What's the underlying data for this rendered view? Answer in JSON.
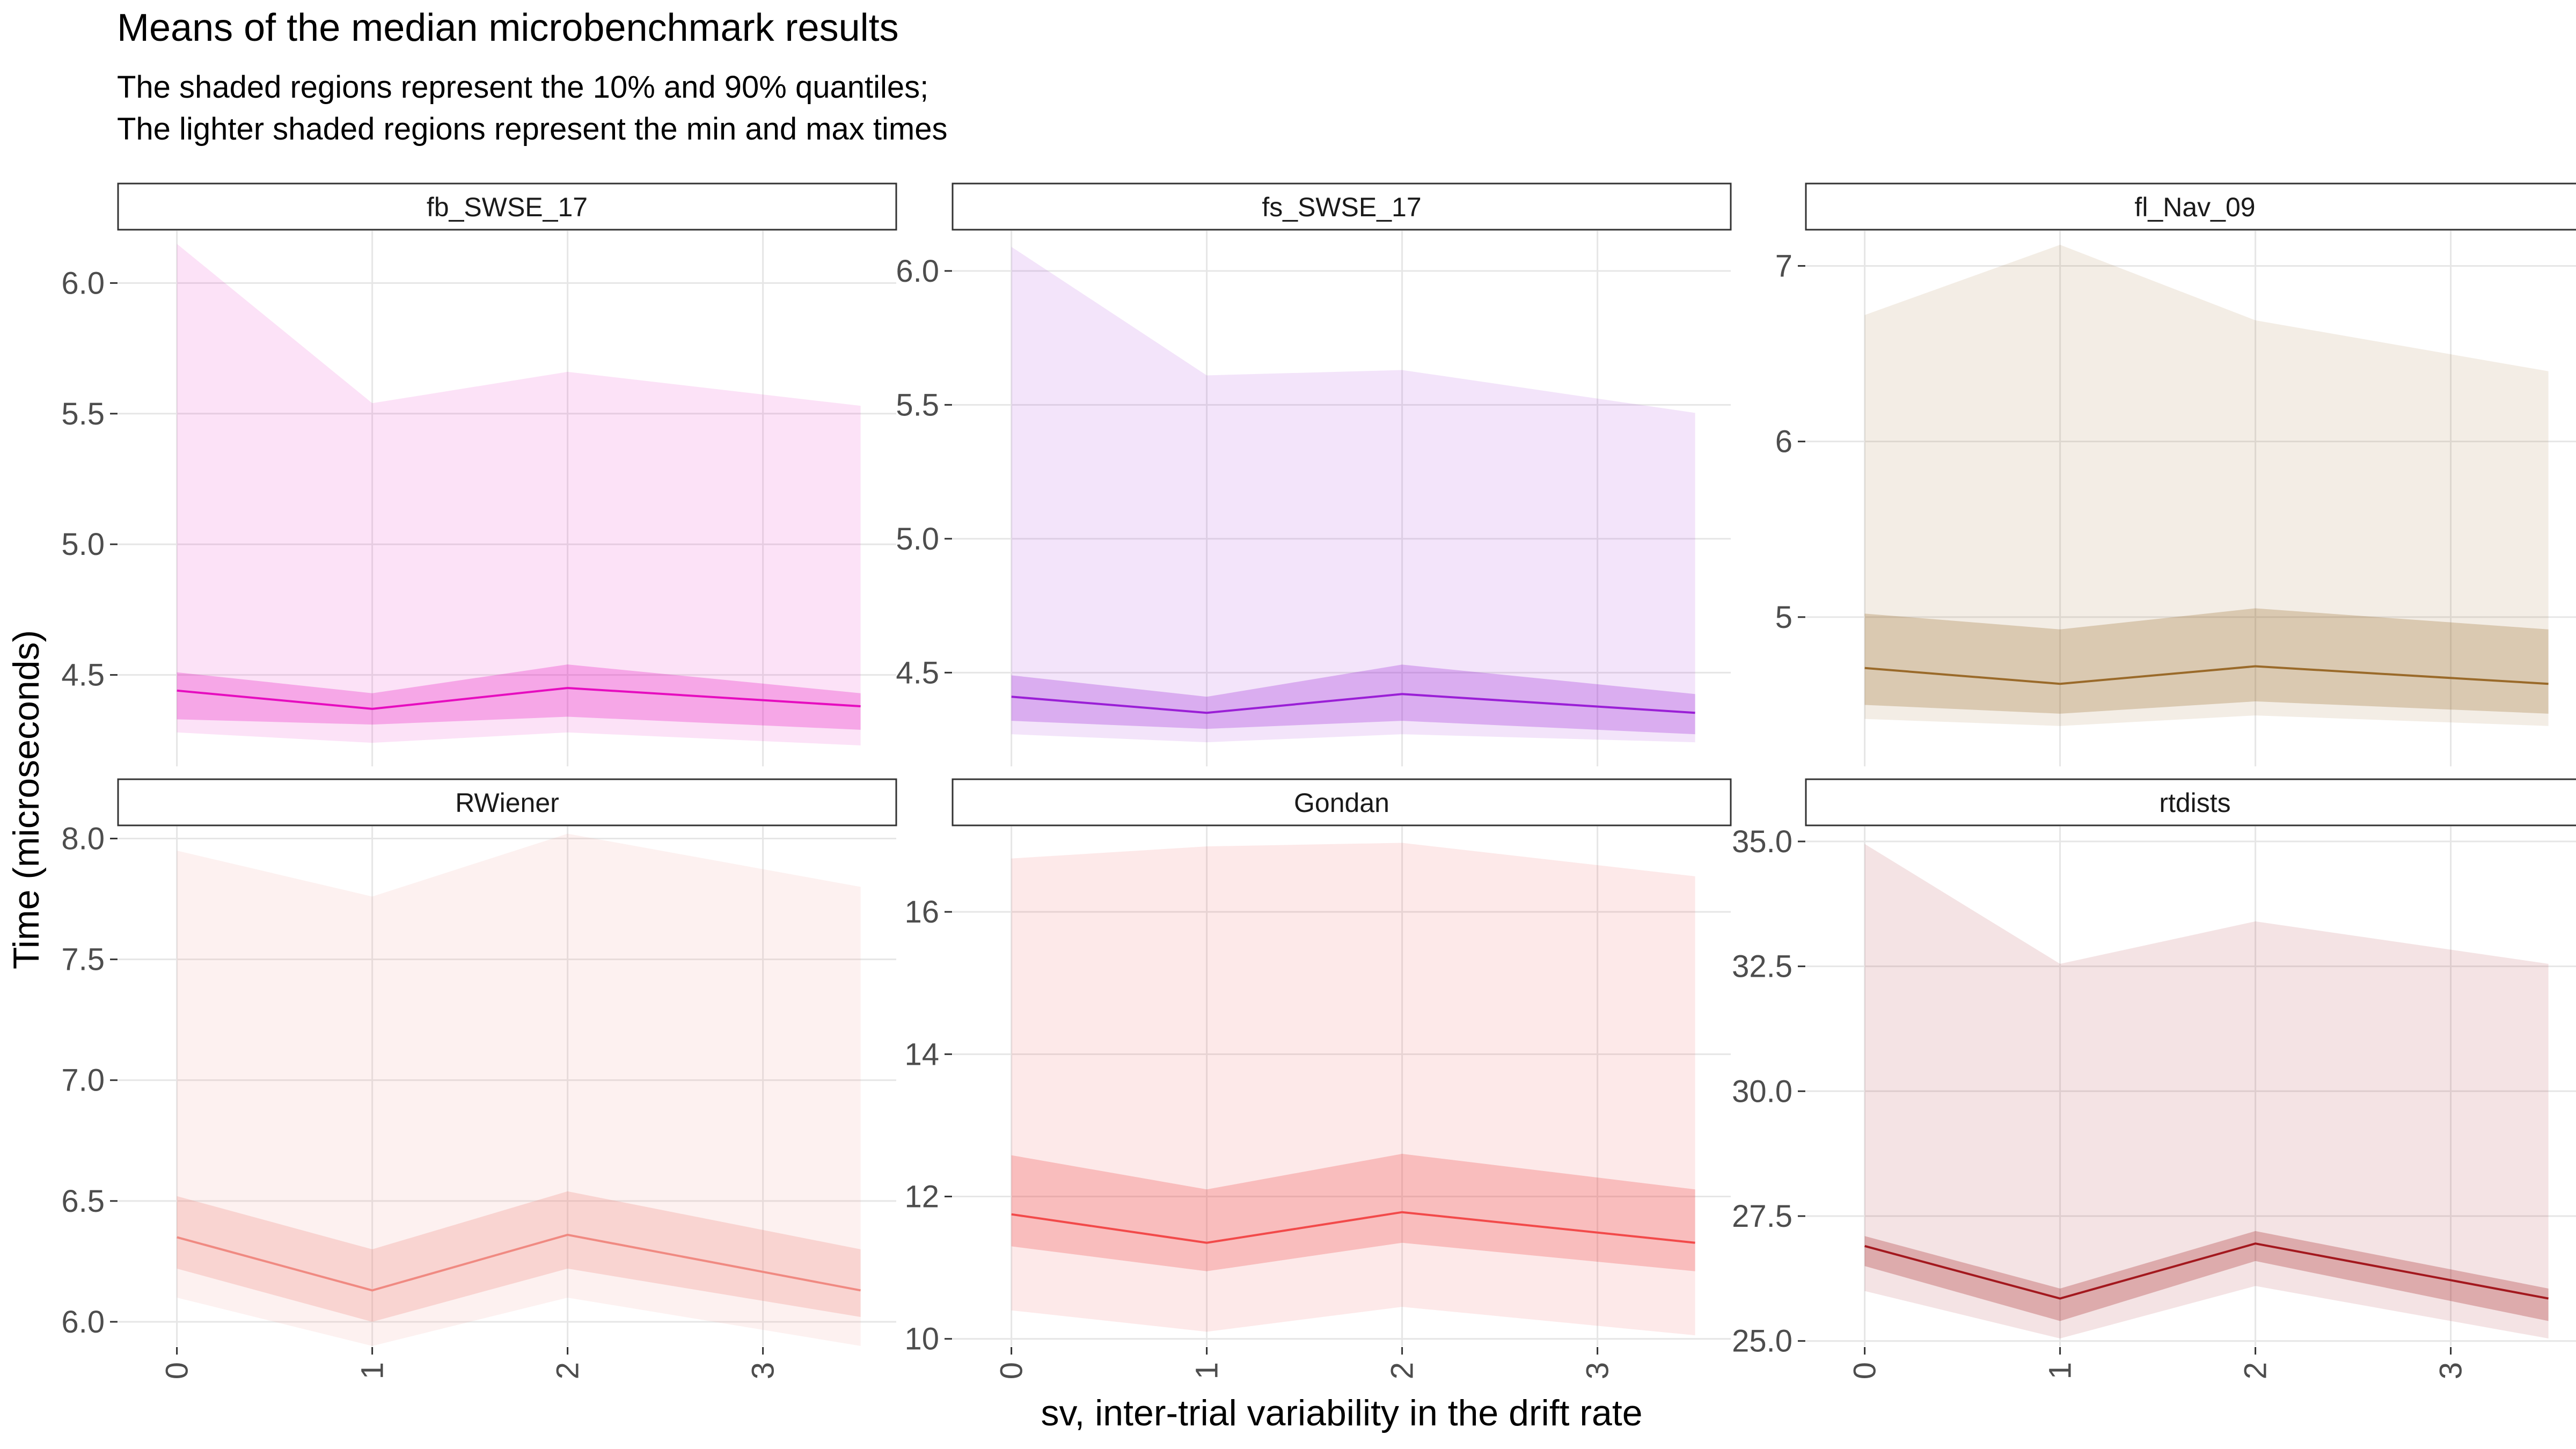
{
  "figure": {
    "title": "Means of the median microbenchmark results",
    "subtitle_lines": [
      "The shaded regions represent the 10% and 90% quantiles;",
      "The lighter shaded regions represent the min and max times"
    ],
    "xlabel": "sv, inter-trial variability in the drift rate",
    "ylabel": "Time (microseconds)"
  },
  "chart_data": [
    {
      "type": "area",
      "panel": "fb_SWSE_17",
      "color": "#e60dbf",
      "x": [
        0,
        1,
        2,
        3.5
      ],
      "x_ticks": [
        "0",
        "1",
        "2",
        "3"
      ],
      "xlim": [
        -0.15,
        3.6
      ],
      "ylim": [
        4.15,
        6.2
      ],
      "y_ticks": [
        "4.5",
        "5.0",
        "5.5",
        "6.0"
      ],
      "series": [
        {
          "stat": "mean",
          "values": [
            4.44,
            4.37,
            4.45,
            4.38
          ]
        },
        {
          "stat": "q10",
          "values": [
            4.33,
            4.31,
            4.34,
            4.29
          ]
        },
        {
          "stat": "q90",
          "values": [
            4.51,
            4.43,
            4.54,
            4.43
          ]
        },
        {
          "stat": "min",
          "values": [
            4.28,
            4.24,
            4.28,
            4.23
          ]
        },
        {
          "stat": "max",
          "values": [
            6.15,
            5.54,
            5.66,
            5.53
          ]
        }
      ]
    },
    {
      "type": "area",
      "panel": "fs_SWSE_17",
      "color": "#9a1fd6",
      "x": [
        0,
        1,
        2,
        3.5
      ],
      "x_ticks": [
        "0",
        "1",
        "2",
        "3"
      ],
      "xlim": [
        -0.15,
        3.6
      ],
      "ylim": [
        4.15,
        6.15
      ],
      "y_ticks": [
        "4.5",
        "5.0",
        "5.5",
        "6.0"
      ],
      "series": [
        {
          "stat": "mean",
          "values": [
            4.41,
            4.35,
            4.42,
            4.35
          ]
        },
        {
          "stat": "q10",
          "values": [
            4.32,
            4.29,
            4.32,
            4.27
          ]
        },
        {
          "stat": "q90",
          "values": [
            4.49,
            4.41,
            4.53,
            4.42
          ]
        },
        {
          "stat": "min",
          "values": [
            4.27,
            4.24,
            4.27,
            4.24
          ]
        },
        {
          "stat": "max",
          "values": [
            6.09,
            5.61,
            5.63,
            5.47
          ]
        }
      ]
    },
    {
      "type": "area",
      "panel": "fl_Nav_09",
      "color": "#9a6a2a",
      "x": [
        0,
        1,
        2,
        3.5
      ],
      "x_ticks": [
        "0",
        "1",
        "2",
        "3"
      ],
      "xlim": [
        -0.15,
        3.6
      ],
      "ylim": [
        4.15,
        7.2
      ],
      "y_ticks": [
        "5",
        "6",
        "7"
      ],
      "series": [
        {
          "stat": "mean",
          "values": [
            4.71,
            4.62,
            4.72,
            4.62
          ]
        },
        {
          "stat": "q10",
          "values": [
            4.5,
            4.45,
            4.52,
            4.45
          ]
        },
        {
          "stat": "q90",
          "values": [
            5.02,
            4.93,
            5.05,
            4.93
          ]
        },
        {
          "stat": "min",
          "values": [
            4.42,
            4.38,
            4.44,
            4.38
          ]
        },
        {
          "stat": "max",
          "values": [
            6.72,
            7.12,
            6.69,
            6.4
          ]
        }
      ]
    },
    {
      "type": "area",
      "panel": "RWiener",
      "color": "#f08a82",
      "x": [
        0,
        1,
        2,
        3.5
      ],
      "x_ticks": [
        "0",
        "1",
        "2",
        "3"
      ],
      "xlim": [
        -0.15,
        3.6
      ],
      "ylim": [
        5.9,
        8.05
      ],
      "y_ticks": [
        "6.0",
        "6.5",
        "7.0",
        "7.5",
        "8.0"
      ],
      "series": [
        {
          "stat": "mean",
          "values": [
            6.35,
            6.13,
            6.36,
            6.13
          ]
        },
        {
          "stat": "q10",
          "values": [
            6.22,
            6.0,
            6.22,
            6.02
          ]
        },
        {
          "stat": "q90",
          "values": [
            6.52,
            6.3,
            6.54,
            6.3
          ]
        },
        {
          "stat": "min",
          "values": [
            6.1,
            5.9,
            6.1,
            5.9
          ]
        },
        {
          "stat": "max",
          "values": [
            7.95,
            7.76,
            8.02,
            7.8
          ]
        }
      ]
    },
    {
      "type": "area",
      "panel": "Gondan",
      "color": "#f24a4a",
      "x": [
        0,
        1,
        2,
        3.5
      ],
      "x_ticks": [
        "0",
        "1",
        "2",
        "3"
      ],
      "xlim": [
        -0.15,
        3.6
      ],
      "ylim": [
        9.9,
        17.2
      ],
      "y_ticks": [
        "10",
        "12",
        "14",
        "16"
      ],
      "series": [
        {
          "stat": "mean",
          "values": [
            11.75,
            11.35,
            11.78,
            11.35
          ]
        },
        {
          "stat": "q10",
          "values": [
            11.3,
            10.95,
            11.35,
            10.95
          ]
        },
        {
          "stat": "q90",
          "values": [
            12.58,
            12.1,
            12.6,
            12.1
          ]
        },
        {
          "stat": "min",
          "values": [
            10.4,
            10.1,
            10.45,
            10.05
          ]
        },
        {
          "stat": "max",
          "values": [
            16.75,
            16.92,
            16.97,
            16.5
          ]
        }
      ]
    },
    {
      "type": "area",
      "panel": "rtdists",
      "color": "#a3181e",
      "x": [
        0,
        1,
        2,
        3.5
      ],
      "x_ticks": [
        "0",
        "1",
        "2",
        "3"
      ],
      "xlim": [
        -0.15,
        3.6
      ],
      "ylim": [
        24.9,
        35.3
      ],
      "y_ticks": [
        "25.0",
        "27.5",
        "30.0",
        "32.5",
        "35.0"
      ],
      "series": [
        {
          "stat": "mean",
          "values": [
            26.9,
            25.85,
            26.95,
            25.85
          ]
        },
        {
          "stat": "q10",
          "values": [
            26.5,
            25.4,
            26.6,
            25.4
          ]
        },
        {
          "stat": "q90",
          "values": [
            27.1,
            26.05,
            27.2,
            26.05
          ]
        },
        {
          "stat": "min",
          "values": [
            26.0,
            25.05,
            26.1,
            25.05
          ]
        },
        {
          "stat": "max",
          "values": [
            34.95,
            32.55,
            33.4,
            32.55
          ]
        }
      ]
    }
  ]
}
